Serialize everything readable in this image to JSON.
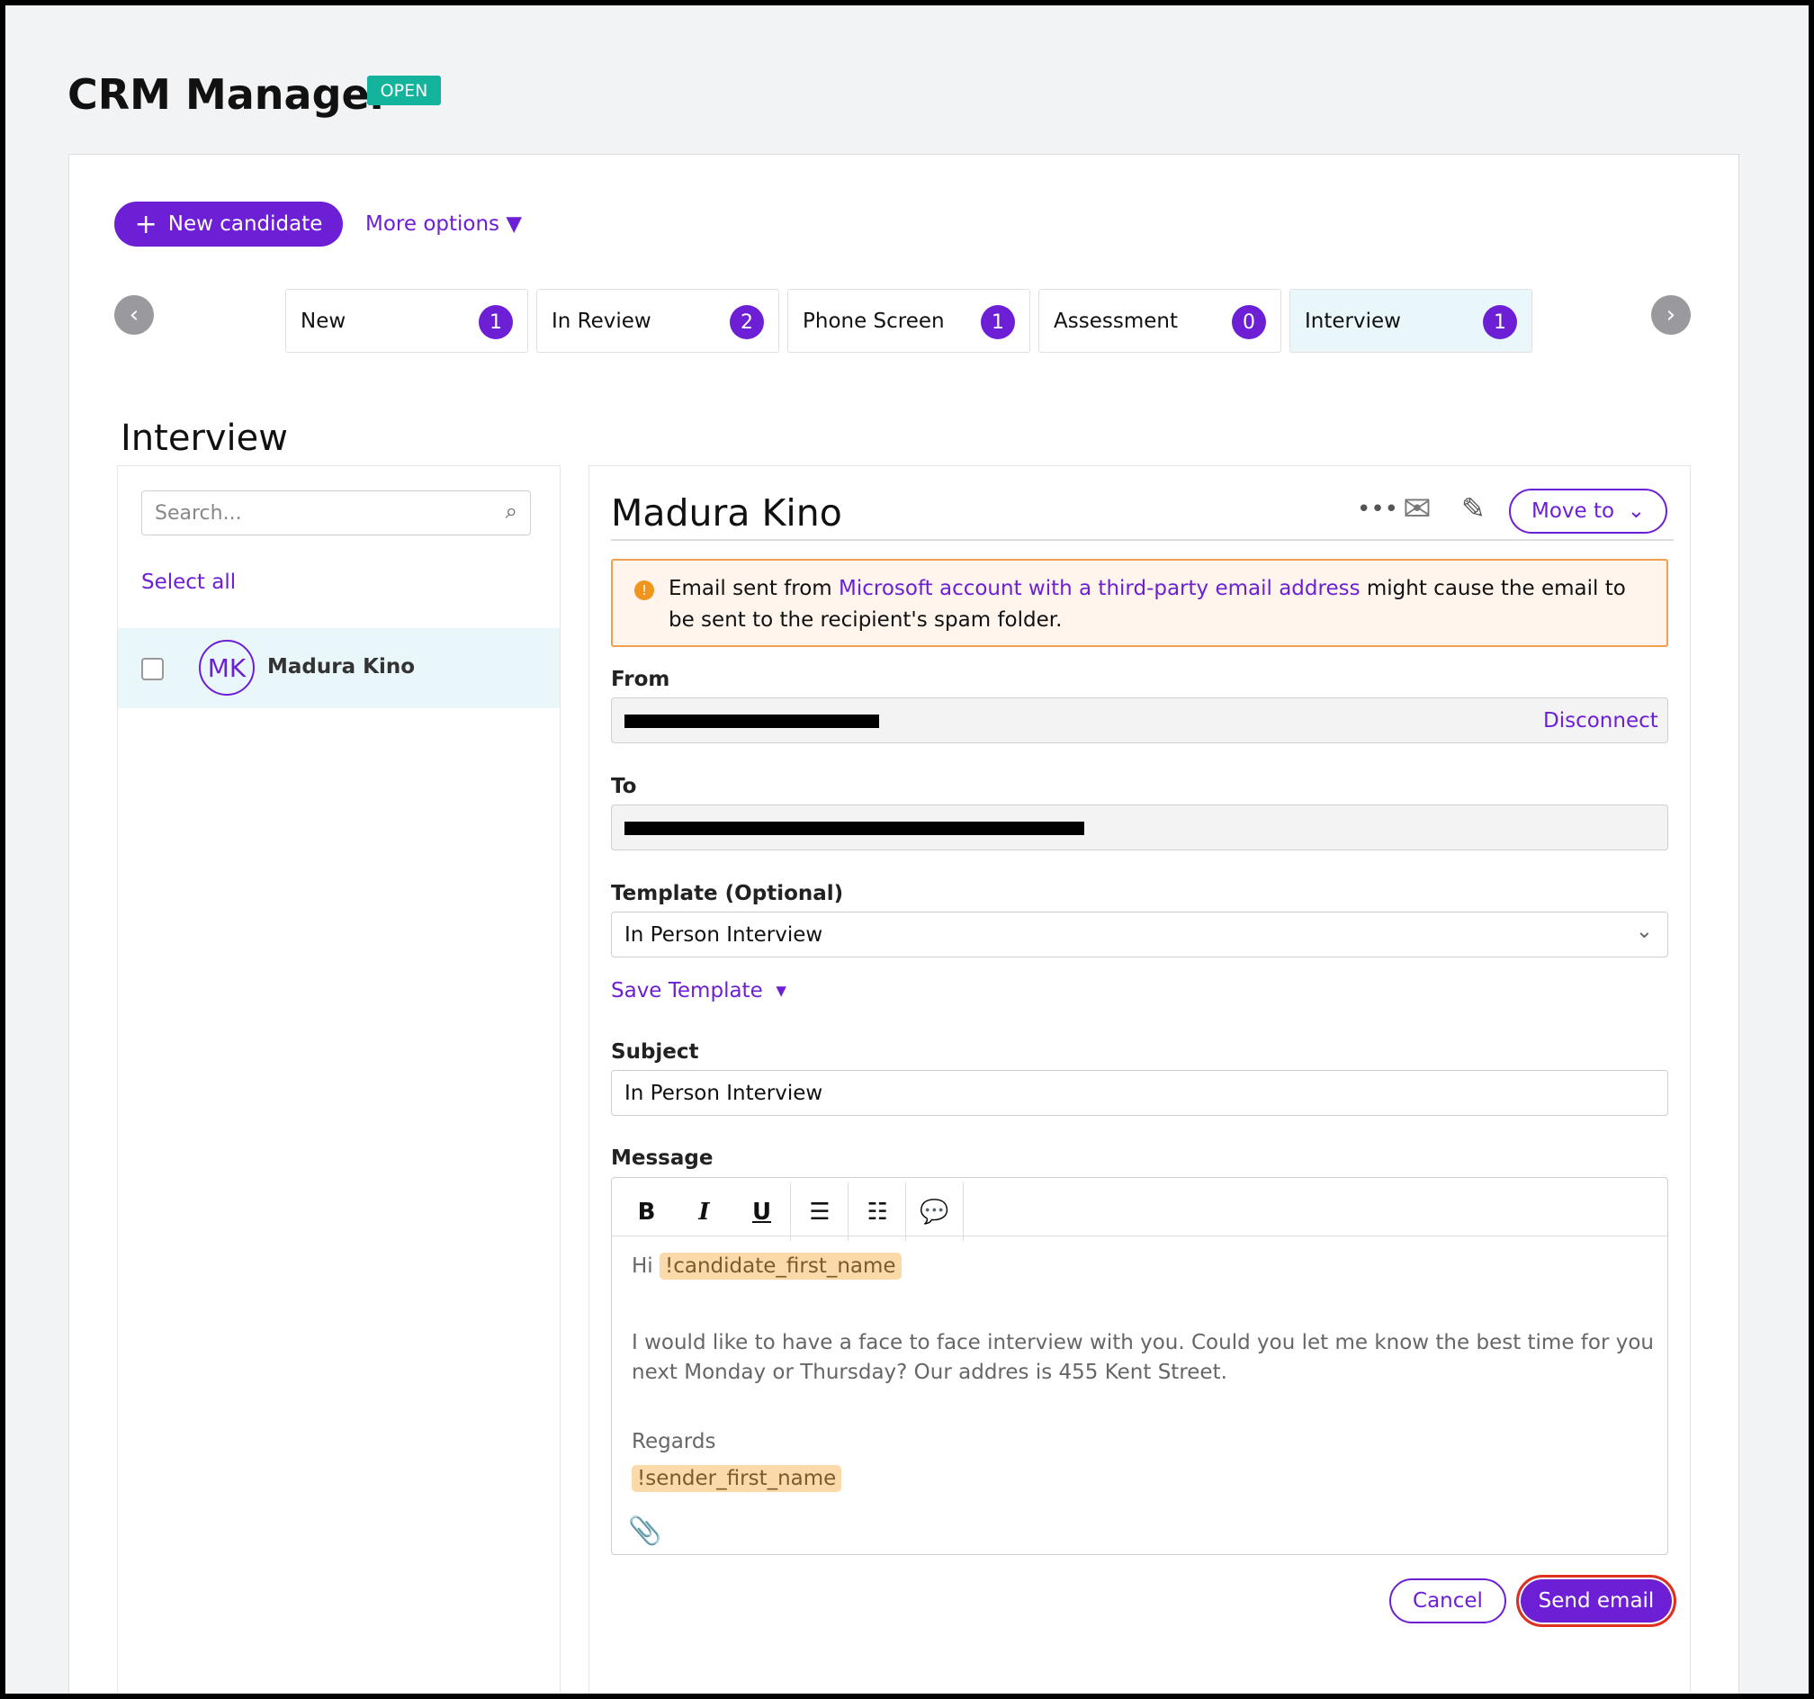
{
  "header": {
    "title": "CRM Manager",
    "badge": "OPEN"
  },
  "toolbar": {
    "new_candidate": "New candidate",
    "more_options": "More options"
  },
  "stages": [
    {
      "name": "New",
      "count": 1
    },
    {
      "name": "In Review",
      "count": 2
    },
    {
      "name": "Phone Screen",
      "count": 1
    },
    {
      "name": "Assessment",
      "count": 0
    },
    {
      "name": "Interview",
      "count": 1
    }
  ],
  "section_title": "Interview",
  "search_placeholder": "Search...",
  "select_all": "Select all",
  "candidates": [
    {
      "initials": "MK",
      "name": "Madura Kino"
    }
  ],
  "detail": {
    "name": "Madura Kino",
    "move_to": "Move to"
  },
  "warning": {
    "prefix": "Email sent from",
    "link": "Microsoft account with a third-party email address",
    "suffix": "might cause the email to be sent to the recipient's spam folder."
  },
  "form": {
    "from_label": "From",
    "disconnect": "Disconnect",
    "to_label": "To",
    "template_label": "Template (Optional)",
    "template_value": "In Person Interview",
    "save_template": "Save Template",
    "subject_label": "Subject",
    "subject_value": "In Person Interview",
    "message_label": "Message"
  },
  "message": {
    "greeting": "Hi",
    "token1": "!candidate_first_name",
    "body": "I would like to have a face to face interview with you. Could you let me know the best time for you next Monday or Thursday? Our addres is 455 Kent Street.",
    "closing": "Regards",
    "token2": "!sender_first_name"
  },
  "buttons": {
    "cancel": "Cancel",
    "send": "Send email"
  }
}
